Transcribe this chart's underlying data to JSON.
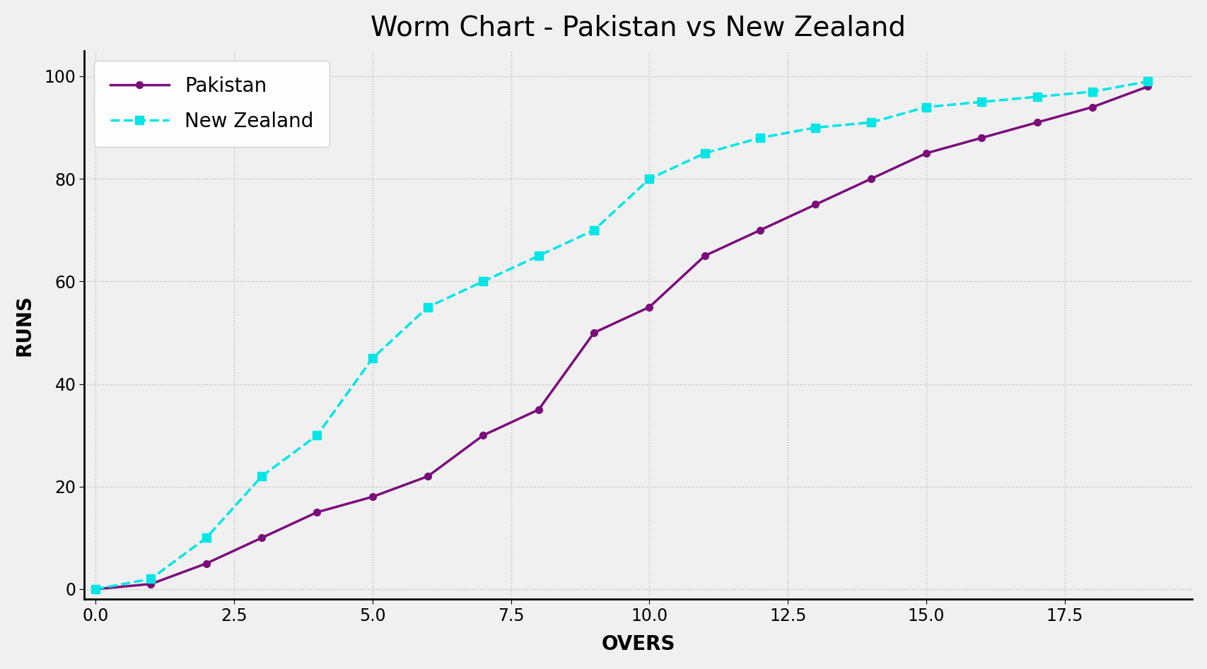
{
  "title": "Worm Chart - Pakistan vs New Zealand",
  "xlabel": "OVERS",
  "ylabel": "RUNS",
  "pakistan_overs": [
    0,
    1,
    2,
    3,
    4,
    5,
    6,
    7,
    8,
    9,
    10,
    11,
    12,
    13,
    14,
    15,
    16,
    17,
    18,
    19
  ],
  "pakistan_runs": [
    0,
    1,
    5,
    10,
    15,
    18,
    22,
    30,
    35,
    50,
    55,
    65,
    70,
    75,
    80,
    85,
    88,
    91,
    94,
    98
  ],
  "nz_overs": [
    0,
    1,
    2,
    3,
    4,
    5,
    6,
    7,
    8,
    9,
    10,
    11,
    12,
    13,
    14,
    15,
    16,
    17,
    18,
    19
  ],
  "nz_runs": [
    0,
    2,
    10,
    22,
    30,
    45,
    55,
    60,
    65,
    70,
    80,
    85,
    88,
    90,
    91,
    94,
    95,
    96,
    97,
    99
  ],
  "pakistan_color": "#7B0C7B",
  "nz_color": "#00E5E5",
  "background_color": "#f0f0f0",
  "plot_bg_color": "#f0f0f0",
  "grid_color": "#bbbbbb",
  "title_fontsize": 28,
  "label_fontsize": 20,
  "tick_fontsize": 17,
  "legend_fontsize": 20,
  "ylim": [
    -2,
    105
  ],
  "xlim": [
    -0.2,
    19.8
  ]
}
